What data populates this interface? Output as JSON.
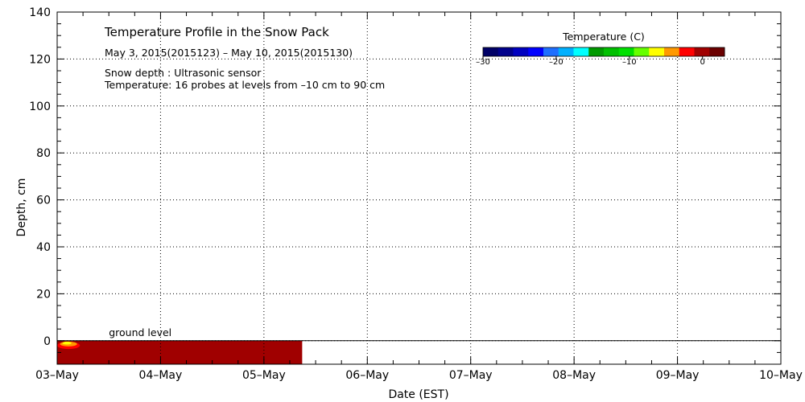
{
  "chart_data": {
    "type": "heatmap",
    "title": "Temperature Profile in the Snow Pack",
    "subtitle": "May  3, 2015(2015123) – May 10, 2015(2015130)",
    "notes": [
      "Snow depth : Ultrasonic sensor",
      "Temperature: 16 probes at levels from –10 cm to 90 cm"
    ],
    "xlabel": "Date (EST)",
    "ylabel": "Depth, cm",
    "x_ticks": [
      "03–May",
      "04–May",
      "05–May",
      "06–May",
      "07–May",
      "08–May",
      "09–May",
      "10–May"
    ],
    "y_ticks": [
      "0",
      "20",
      "40",
      "60",
      "80",
      "100",
      "120",
      "140"
    ],
    "y_tick_values": [
      0,
      20,
      40,
      60,
      80,
      100,
      120,
      140
    ],
    "xlim_days": [
      0,
      7
    ],
    "ylim": [
      -10,
      140
    ],
    "ground_level_label": "ground level",
    "ground_level_value": 0,
    "grid": true,
    "colorbar": {
      "label": "Temperature (C)",
      "tick_labels": [
        "–30",
        "–20",
        "–10",
        "0"
      ],
      "tick_values": [
        -30,
        -20,
        -10,
        0
      ],
      "range": [
        -30,
        3
      ],
      "colors": [
        "#000066",
        "#00008b",
        "#0000c0",
        "#0000ff",
        "#1e6fff",
        "#00b0ff",
        "#00ffff",
        "#009a00",
        "#00c000",
        "#00e000",
        "#66ff00",
        "#ffff00",
        "#ff9900",
        "#ff0000",
        "#a00000",
        "#6b0000"
      ]
    },
    "data_coverage": {
      "start_day": 0,
      "end_day": 2.37,
      "depth_range": [
        -10,
        0
      ],
      "value": "near 0 °C (dark red)",
      "warm_spot_days": [
        0,
        0.22
      ]
    }
  }
}
